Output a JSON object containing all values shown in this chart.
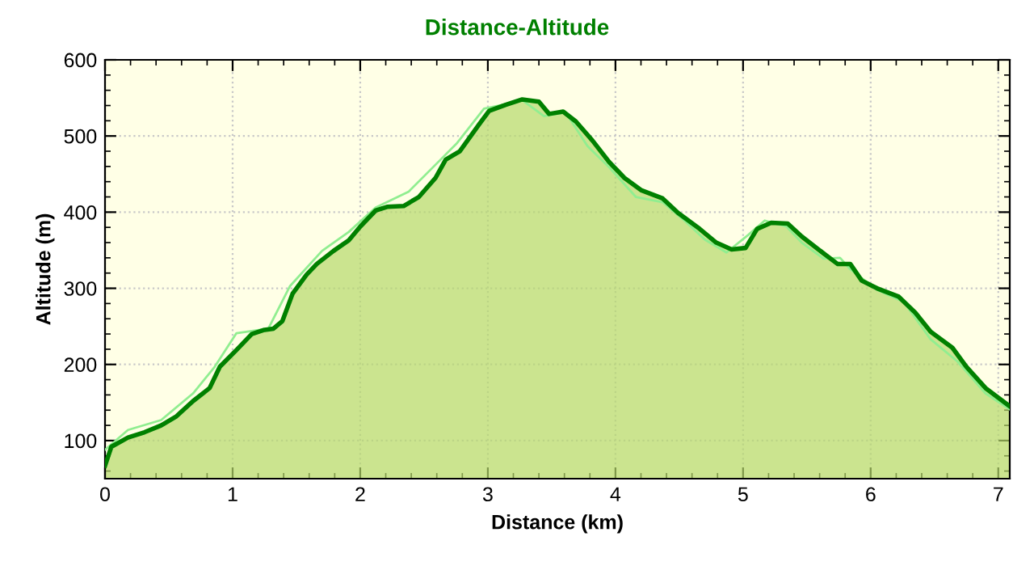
{
  "chart_data": {
    "type": "area",
    "title": "Distance-Altitude",
    "xlabel": "Distance (km)",
    "ylabel": "Altitude (m)",
    "xlim": [
      0,
      7.09
    ],
    "ylim": [
      50,
      600
    ],
    "xticks": [
      0,
      1,
      2,
      3,
      4,
      5,
      6,
      7
    ],
    "yticks": [
      100,
      200,
      300,
      400,
      500,
      600
    ],
    "grid": true,
    "legend": false,
    "series": [
      {
        "color": "#008000",
        "x": [
          0,
          0.05,
          0.18,
          0.31,
          0.44,
          0.56,
          0.69,
          0.82,
          0.9,
          1.03,
          1.15,
          1.24,
          1.32,
          1.39,
          1.47,
          1.58,
          1.66,
          1.79,
          1.91,
          2.0,
          2.12,
          2.21,
          2.34,
          2.46,
          2.59,
          2.67,
          2.78,
          2.84,
          2.93,
          3.01,
          3.14,
          3.27,
          3.4,
          3.48,
          3.59,
          3.69,
          3.82,
          3.95,
          4.07,
          4.2,
          4.37,
          4.49,
          4.66,
          4.79,
          4.91,
          5.02,
          5.11,
          5.22,
          5.35,
          5.46,
          5.63,
          5.74,
          5.84,
          5.93,
          6.05,
          6.22,
          6.35,
          6.47,
          6.64,
          6.75,
          6.9,
          7.09
        ],
        "values": [
          67,
          92,
          104,
          111,
          120,
          132,
          152,
          169,
          197,
          219,
          240,
          245,
          247,
          257,
          293,
          318,
          332,
          349,
          363,
          381,
          402,
          407,
          408,
          420,
          445,
          469,
          480,
          494,
          515,
          533,
          541,
          548,
          545,
          529,
          532,
          519,
          494,
          466,
          445,
          429,
          418,
          399,
          378,
          360,
          351,
          353,
          378,
          386,
          385,
          368,
          346,
          332,
          332,
          310,
          300,
          289,
          268,
          243,
          222,
          197,
          169,
          145
        ]
      },
      {
        "type": "line",
        "color": "#90ee90",
        "x": [
          0,
          0.18,
          0.44,
          0.69,
          0.86,
          1.03,
          1.28,
          1.45,
          1.7,
          1.91,
          2.12,
          2.38,
          2.63,
          2.76,
          2.97,
          3.18,
          3.27,
          3.44,
          3.61,
          3.78,
          3.95,
          4.16,
          4.37,
          4.54,
          4.7,
          4.87,
          5.04,
          5.17,
          5.34,
          5.46,
          5.63,
          5.76,
          5.84,
          6.05,
          6.26,
          6.47,
          6.68,
          6.9,
          7.09
        ],
        "values": [
          88,
          114,
          127,
          162,
          197,
          241,
          247,
          303,
          349,
          374,
          406,
          427,
          469,
          491,
          536,
          543,
          547,
          526,
          531,
          487,
          459,
          420,
          413,
          389,
          364,
          347,
          370,
          389,
          381,
          360,
          339,
          340,
          325,
          298,
          282,
          233,
          204,
          162,
          141
        ]
      }
    ]
  }
}
